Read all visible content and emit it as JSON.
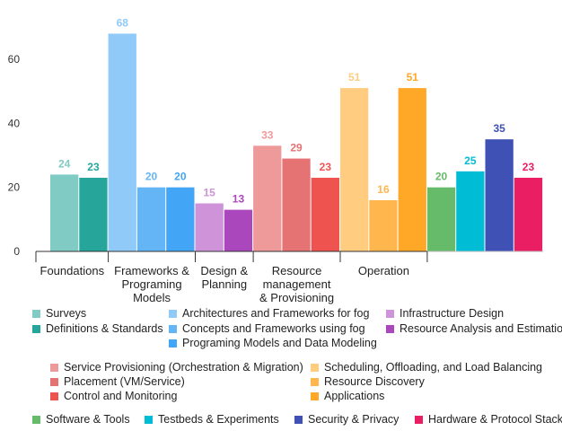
{
  "chart_data": {
    "type": "bar",
    "ylim": [
      0,
      72
    ],
    "yticks": [
      0,
      20,
      40,
      60
    ],
    "grid": false,
    "groups": [
      {
        "label": [
          "Foundations"
        ],
        "series": [
          0,
          1
        ]
      },
      {
        "label": [
          "Frameworks &",
          "Programing",
          "Models"
        ],
        "series": [
          2,
          3,
          4
        ]
      },
      {
        "label": [
          "Design &",
          "Planning"
        ],
        "series": [
          5,
          6
        ]
      },
      {
        "label": [
          "Resource",
          "management",
          "& Provisioning"
        ],
        "series": [
          7,
          8,
          9
        ]
      },
      {
        "label": [
          "Operation"
        ],
        "series": [
          10,
          11,
          12
        ]
      },
      {
        "label": [],
        "series": [
          13,
          14,
          15,
          16
        ]
      }
    ],
    "series": [
      {
        "name": "Surveys",
        "value": 24,
        "color": "#80cbc4"
      },
      {
        "name": "Definitions & Standards",
        "value": 23,
        "color": "#26a69a"
      },
      {
        "name": "Architectures and Frameworks for fog",
        "value": 68,
        "color": "#90caf9"
      },
      {
        "name": "Concepts and Frameworks using fog",
        "value": 20,
        "color": "#64b5f6"
      },
      {
        "name": "Programing Models and Data Modeling",
        "value": 20,
        "color": "#42a5f5"
      },
      {
        "name": "Infrastructure Design",
        "value": 15,
        "color": "#ce93d8"
      },
      {
        "name": "Resource Analysis and Estimation",
        "value": 13,
        "color": "#ab47bc"
      },
      {
        "name": "Service Provisioning (Orchestration & Migration)",
        "value": 33,
        "color": "#ef9a9a"
      },
      {
        "name": "Placement (VM/Service)",
        "value": 29,
        "color": "#e57373"
      },
      {
        "name": "Control and Monitoring",
        "value": 23,
        "color": "#ef5350"
      },
      {
        "name": "Scheduling, Offloading, and Load Balancing",
        "value": 51,
        "color": "#ffcc80"
      },
      {
        "name": "Resource Discovery",
        "value": 16,
        "color": "#ffb74d"
      },
      {
        "name": "Applications",
        "value": 51,
        "color": "#ffa726"
      },
      {
        "name": "Software & Tools",
        "value": 20,
        "color": "#66bb6a"
      },
      {
        "name": "Testbeds & Experiments",
        "value": 25,
        "color": "#00bcd4"
      },
      {
        "name": "Security & Privacy",
        "value": 35,
        "color": "#3f51b5"
      },
      {
        "name": "Hardware & Protocol Stack",
        "value": 23,
        "color": "#e91e63"
      }
    ]
  }
}
